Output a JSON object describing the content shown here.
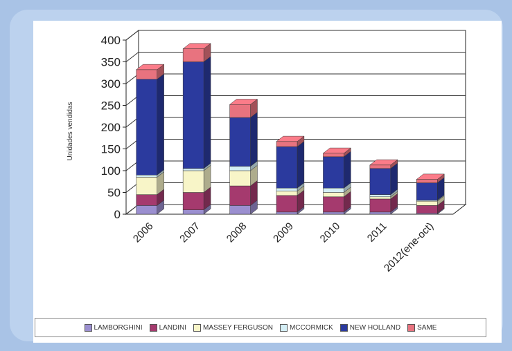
{
  "chart_data": {
    "type": "bar",
    "stacked": true,
    "ylabel": "Unidades vendidas",
    "ylim": [
      0,
      400
    ],
    "yticks": [
      0,
      50,
      100,
      150,
      200,
      250,
      300,
      350,
      400
    ],
    "categories": [
      "2006",
      "2007",
      "2008",
      "2009",
      "2010",
      "2011",
      "2012(ene-oct)"
    ],
    "series": [
      {
        "name": "LAMBORGHINI",
        "color": "#9b8fd0",
        "values": [
          20,
          10,
          20,
          5,
          5,
          5,
          2
        ]
      },
      {
        "name": "LANDINI",
        "color": "#a53a6e",
        "values": [
          25,
          40,
          45,
          38,
          35,
          30,
          18
        ]
      },
      {
        "name": "MASSEY FERGUSON",
        "color": "#f8f5c8",
        "values": [
          40,
          50,
          35,
          10,
          10,
          5,
          10
        ]
      },
      {
        "name": "MCCORMICK",
        "color": "#d4eef5",
        "values": [
          5,
          5,
          10,
          7,
          10,
          5,
          2
        ]
      },
      {
        "name": "NEW HOLLAND",
        "color": "#2b3a9e",
        "values": [
          220,
          245,
          112,
          95,
          72,
          60,
          40
        ]
      },
      {
        "name": "SAME",
        "color": "#e8737f",
        "values": [
          22,
          30,
          30,
          12,
          8,
          8,
          8
        ]
      }
    ],
    "grid": true,
    "legend_position": "bottom"
  }
}
